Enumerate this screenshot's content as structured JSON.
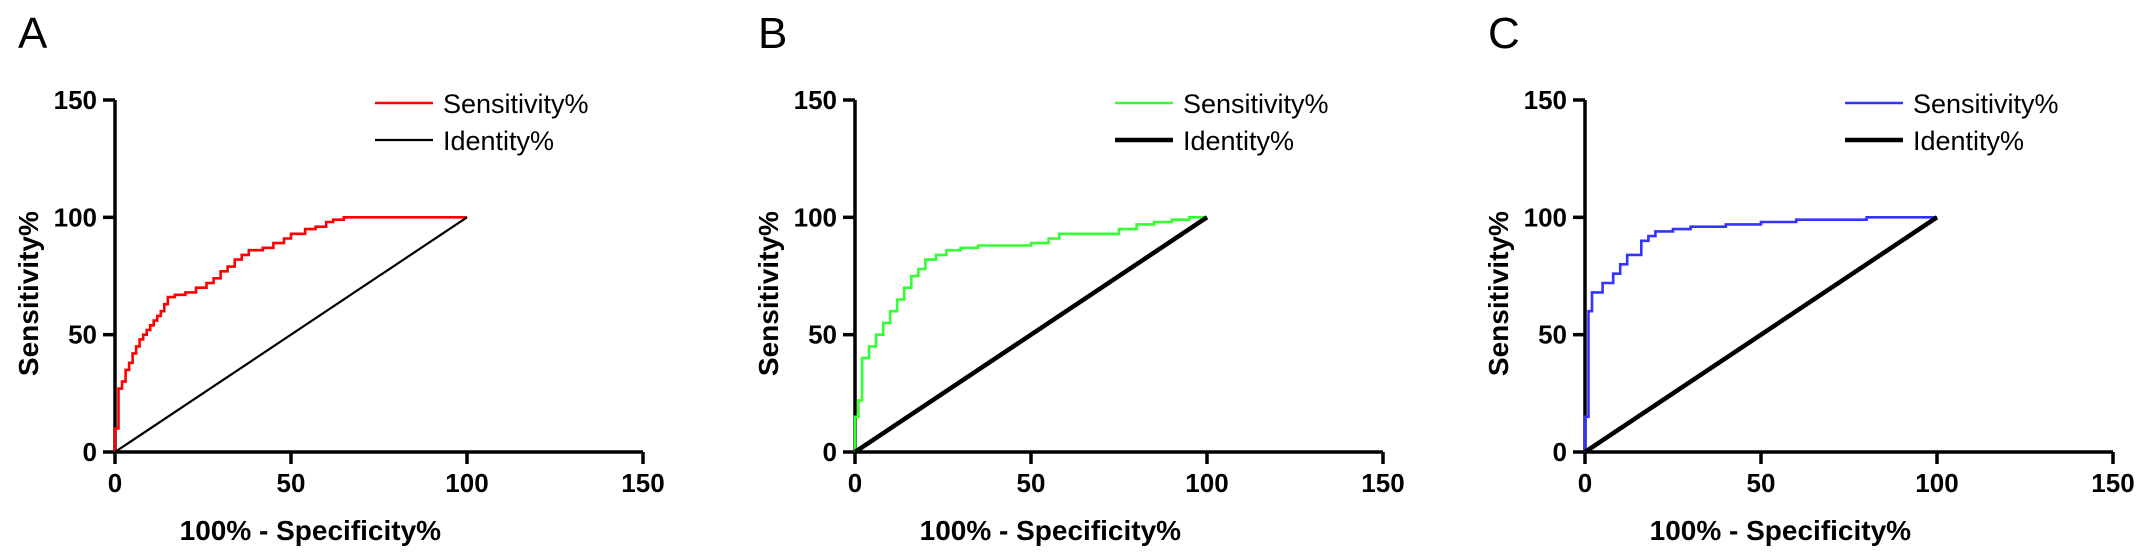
{
  "chart_data": [
    {
      "type": "line",
      "panel_label": "A",
      "xlabel": "100% - Specificity%",
      "ylabel": "Sensitivity%",
      "xlim": [
        0,
        150
      ],
      "ylim": [
        0,
        150
      ],
      "xticks": [
        "0",
        "50",
        "100",
        "150"
      ],
      "yticks": [
        "0",
        "50",
        "100",
        "150"
      ],
      "grid": false,
      "legend_position": "top-right",
      "series": [
        {
          "name": "Sensitivity%",
          "color": "#ff0000",
          "style": "step",
          "x": [
            0,
            0,
            1,
            1,
            2,
            2,
            3,
            3,
            4,
            4,
            5,
            5,
            6,
            6,
            7,
            7,
            8,
            8,
            9,
            9,
            10,
            10,
            11,
            11,
            12,
            12,
            13,
            13,
            14,
            14,
            15,
            15,
            17,
            17,
            20,
            20,
            23,
            23,
            26,
            26,
            28,
            28,
            30,
            30,
            32,
            32,
            34,
            34,
            36,
            36,
            38,
            38,
            42,
            42,
            45,
            45,
            48,
            48,
            50,
            50,
            54,
            54,
            57,
            57,
            60,
            60,
            62,
            62,
            65,
            65,
            100
          ],
          "y": [
            0,
            10,
            10,
            27,
            27,
            30,
            30,
            35,
            35,
            38,
            38,
            42,
            42,
            45,
            45,
            48,
            48,
            50,
            50,
            52,
            52,
            54,
            54,
            56,
            56,
            58,
            58,
            60,
            60,
            63,
            63,
            66,
            66,
            67,
            67,
            68,
            68,
            70,
            70,
            72,
            72,
            74,
            74,
            77,
            77,
            79,
            79,
            82,
            82,
            84,
            84,
            86,
            86,
            87,
            87,
            89,
            89,
            91,
            91,
            93,
            93,
            95,
            95,
            96,
            96,
            98,
            98,
            99,
            99,
            100,
            100
          ]
        },
        {
          "name": "Identity%",
          "color": "#000000",
          "style": "line",
          "x": [
            0,
            100
          ],
          "y": [
            0,
            100
          ]
        }
      ]
    },
    {
      "type": "line",
      "panel_label": "B",
      "xlabel": "100% - Specificity%",
      "ylabel": "Sensitivity%",
      "xlim": [
        0,
        150
      ],
      "ylim": [
        0,
        150
      ],
      "xticks": [
        "0",
        "50",
        "100",
        "150"
      ],
      "yticks": [
        "0",
        "50",
        "100",
        "150"
      ],
      "grid": false,
      "legend_position": "top-right",
      "series": [
        {
          "name": "Sensitivity%",
          "color": "#33ff33",
          "style": "step",
          "x": [
            0,
            0,
            1,
            1,
            2,
            2,
            4,
            4,
            6,
            6,
            8,
            8,
            10,
            10,
            12,
            12,
            14,
            14,
            16,
            16,
            18,
            18,
            20,
            20,
            23,
            23,
            26,
            26,
            30,
            30,
            35,
            35,
            50,
            50,
            55,
            55,
            58,
            58,
            75,
            75,
            80,
            80,
            85,
            85,
            90,
            90,
            95,
            95,
            100
          ],
          "y": [
            0,
            15,
            15,
            22,
            22,
            40,
            40,
            45,
            45,
            50,
            50,
            55,
            55,
            60,
            60,
            65,
            65,
            70,
            70,
            75,
            75,
            78,
            78,
            82,
            82,
            84,
            84,
            86,
            86,
            87,
            87,
            88,
            88,
            89,
            89,
            91,
            91,
            93,
            93,
            95,
            95,
            97,
            97,
            98,
            98,
            99,
            99,
            100,
            100
          ]
        },
        {
          "name": "Identity%",
          "color": "#000000",
          "style": "line",
          "x": [
            0,
            100
          ],
          "y": [
            0,
            100
          ]
        }
      ]
    },
    {
      "type": "line",
      "panel_label": "C",
      "xlabel": "100% - Specificity%",
      "ylabel": "Sensitivity%",
      "xlim": [
        0,
        150
      ],
      "ylim": [
        0,
        150
      ],
      "xticks": [
        "0",
        "50",
        "100",
        "150"
      ],
      "yticks": [
        "0",
        "50",
        "100",
        "150"
      ],
      "grid": false,
      "legend_position": "top-right",
      "series": [
        {
          "name": "Sensitivity%",
          "color": "#3333ff",
          "style": "step",
          "x": [
            0,
            0,
            1,
            1,
            2,
            2,
            5,
            5,
            8,
            8,
            10,
            10,
            12,
            12,
            16,
            16,
            18,
            18,
            20,
            20,
            25,
            25,
            30,
            30,
            40,
            40,
            50,
            50,
            60,
            60,
            80,
            80,
            100
          ],
          "y": [
            0,
            15,
            15,
            60,
            60,
            68,
            68,
            72,
            72,
            76,
            76,
            80,
            80,
            84,
            84,
            90,
            90,
            92,
            92,
            94,
            94,
            95,
            95,
            96,
            96,
            97,
            97,
            98,
            98,
            99,
            99,
            100,
            100
          ]
        },
        {
          "name": "Identity%",
          "color": "#000000",
          "style": "line",
          "x": [
            0,
            100
          ],
          "y": [
            0,
            100
          ]
        }
      ]
    }
  ]
}
